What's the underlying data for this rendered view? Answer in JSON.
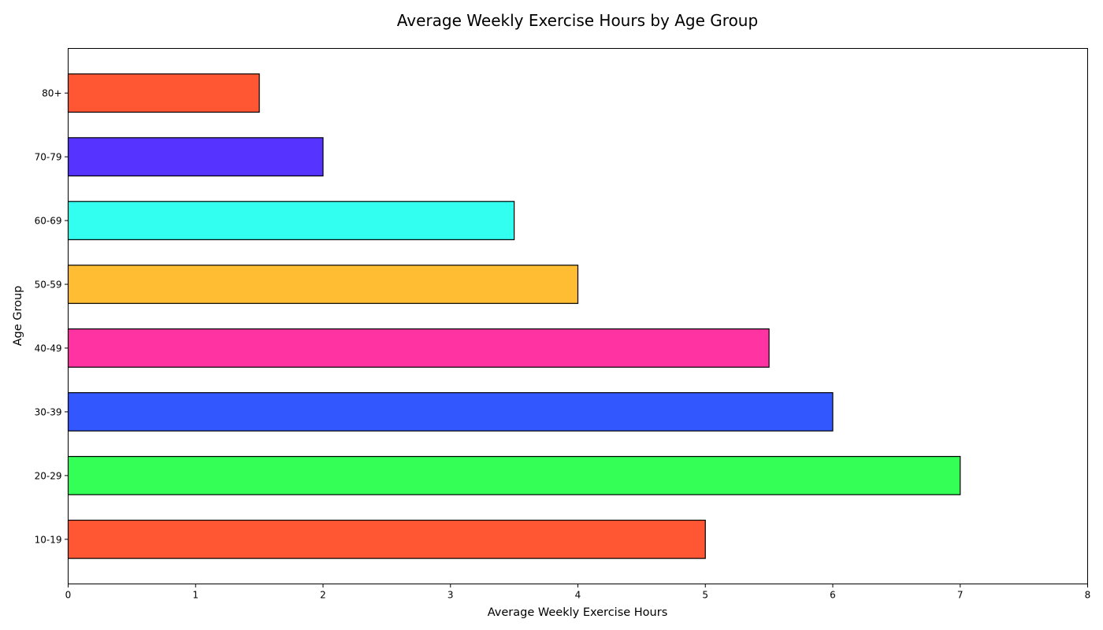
{
  "chart_data": {
    "type": "bar",
    "orientation": "horizontal",
    "title": "Average Weekly Exercise Hours by Age Group",
    "xlabel": "Average Weekly Exercise Hours",
    "ylabel": "Age Group",
    "xlim": [
      0,
      8
    ],
    "x_ticks": [
      "0",
      "1",
      "2",
      "3",
      "4",
      "5",
      "6",
      "7",
      "8"
    ],
    "grid": false,
    "categories": [
      "10-19",
      "20-29",
      "30-39",
      "40-49",
      "50-59",
      "60-69",
      "70-79",
      "80+"
    ],
    "values": [
      5,
      7,
      6,
      5.5,
      4,
      3.5,
      2,
      1.5
    ],
    "colors": [
      "#FF5733",
      "#33FF57",
      "#3357FF",
      "#FF33A1",
      "#FFBD33",
      "#33FFF0",
      "#5733FF",
      "#FF5733"
    ],
    "edge_color": "#000000"
  }
}
